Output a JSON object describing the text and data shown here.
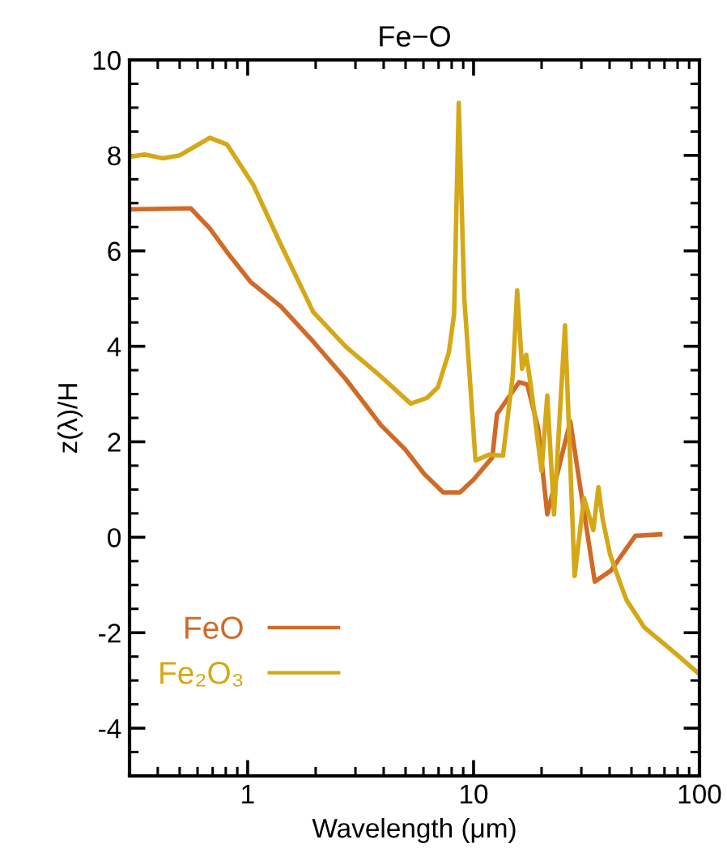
{
  "chart_data": {
    "type": "line",
    "title": "Fe−O",
    "xlabel": "Wavelength (μm)",
    "ylabel": "z(λ)/H",
    "log": "x",
    "xlim": [
      0.3,
      100
    ],
    "xticks": [
      1,
      10,
      100
    ],
    "ylim": [
      -5,
      10
    ],
    "yticks": [
      -4,
      -2,
      0,
      2,
      4,
      6,
      8,
      10
    ],
    "grid": false,
    "legend": "bottom left",
    "marker": "none",
    "line_style": "solid",
    "series": [
      {
        "name": "FeO",
        "color": "#d06a28",
        "x": [
          0.3,
          0.56,
          0.68,
          0.83,
          1.03,
          1.4,
          1.95,
          2.72,
          3.89,
          4.98,
          6.04,
          7.34,
          8.7,
          10.05,
          12.1,
          12.7,
          15.9,
          17.3,
          19.3,
          21.2,
          26.8,
          29.9,
          34.4,
          40.5,
          52,
          67
        ],
        "values": [
          6.87,
          6.89,
          6.47,
          5.91,
          5.35,
          4.84,
          4.1,
          3.31,
          2.35,
          1.84,
          1.33,
          0.94,
          0.94,
          1.22,
          1.67,
          2.58,
          3.25,
          3.2,
          2.29,
          0.48,
          2.43,
          0.94,
          -0.93,
          -0.7,
          0.03,
          0.06
        ]
      },
      {
        "name": "Fe₂O₃",
        "color": "#d4a817",
        "x": [
          0.3,
          0.35,
          0.42,
          0.5,
          0.68,
          0.81,
          1.06,
          1.4,
          1.95,
          2.72,
          3.78,
          5.27,
          6.22,
          6.95,
          7.77,
          8.2,
          8.6,
          9.1,
          10.2,
          11.7,
          13.5,
          14.9,
          15.6,
          16.4,
          17.1,
          17.9,
          20.0,
          21.2,
          22.7,
          25.4,
          28.0,
          30.8,
          33.9,
          35.7,
          37.3,
          40.2,
          45.2,
          47.6,
          57,
          79,
          100
        ],
        "values": [
          7.97,
          8.02,
          7.94,
          8.0,
          8.37,
          8.23,
          7.38,
          6.14,
          4.72,
          3.99,
          3.42,
          2.8,
          2.92,
          3.14,
          3.87,
          4.67,
          9.1,
          5.0,
          1.61,
          1.73,
          1.71,
          3.37,
          5.17,
          3.53,
          3.82,
          3.2,
          1.39,
          2.97,
          0.48,
          4.44,
          -0.81,
          0.82,
          0.15,
          1.05,
          0.37,
          -0.36,
          -1.04,
          -1.32,
          -1.89,
          -2.45,
          -2.87
        ]
      }
    ]
  }
}
